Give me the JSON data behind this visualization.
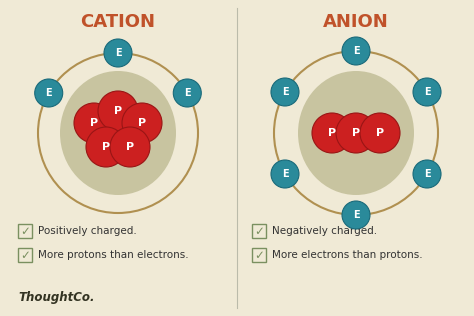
{
  "bg_color": "#f0ead6",
  "title_cation": "CATION",
  "title_anion": "ANION",
  "title_color": "#c0522a",
  "title_fontsize": 13,
  "divider_color": "#bbbbaa",
  "nucleus_color": "#cc2020",
  "nucleus_border": "#991515",
  "electron_color": "#2a8a9a",
  "electron_border": "#1a6a7a",
  "orbit_color": "#b09050",
  "nucleus_label": "P",
  "electron_label": "E",
  "inner_blob_color": "#c8c4a0",
  "cation_bullet1": "Positively charged.",
  "cation_bullet2": "More protons than electrons.",
  "anion_bullet1": "Negatively charged.",
  "anion_bullet2": "More electrons than protons.",
  "thoughtco_text": "ThoughtCo.",
  "thoughtco_color": "#333322",
  "check_color": "#7a9060",
  "text_color": "#333333",
  "font_size_bullet": 7.5,
  "font_size_thoughtco": 8.5
}
